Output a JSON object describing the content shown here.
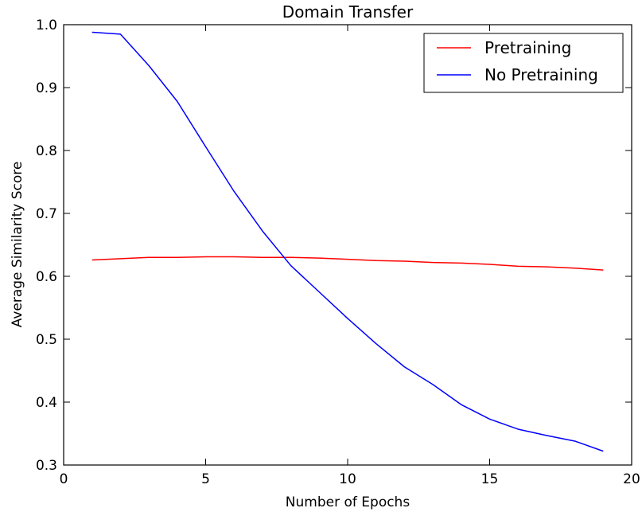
{
  "chart_data": {
    "type": "line",
    "title": "Domain Transfer",
    "xlabel": "Number of Epochs",
    "ylabel": "Average Similarity Score",
    "xlim": [
      0,
      20
    ],
    "ylim": [
      0.3,
      1.0
    ],
    "xticks": [
      0,
      5,
      10,
      15,
      20
    ],
    "xtick_labels": [
      "0",
      "5",
      "10",
      "15",
      "20"
    ],
    "yticks": [
      0.3,
      0.4,
      0.5,
      0.6,
      0.7,
      0.8,
      0.9,
      1.0
    ],
    "ytick_labels": [
      "0.3",
      "0.4",
      "0.5",
      "0.6",
      "0.7",
      "0.8",
      "0.9",
      "1.0"
    ],
    "grid": false,
    "legend_position": "top-right",
    "x": [
      1,
      2,
      3,
      4,
      5,
      6,
      7,
      8,
      9,
      10,
      11,
      12,
      13,
      14,
      15,
      16,
      17,
      18,
      19
    ],
    "series": [
      {
        "name": "Pretraining",
        "color": "#ff0000",
        "values": [
          0.626,
          0.628,
          0.63,
          0.63,
          0.631,
          0.631,
          0.63,
          0.63,
          0.629,
          0.627,
          0.625,
          0.624,
          0.622,
          0.621,
          0.619,
          0.616,
          0.615,
          0.613,
          0.61
        ]
      },
      {
        "name": "No Pretraining",
        "color": "#0000ff",
        "values": [
          0.988,
          0.985,
          0.935,
          0.878,
          0.806,
          0.735,
          0.672,
          0.617,
          0.575,
          0.533,
          0.493,
          0.456,
          0.428,
          0.396,
          0.373,
          0.357,
          0.347,
          0.338,
          0.322
        ]
      }
    ]
  }
}
